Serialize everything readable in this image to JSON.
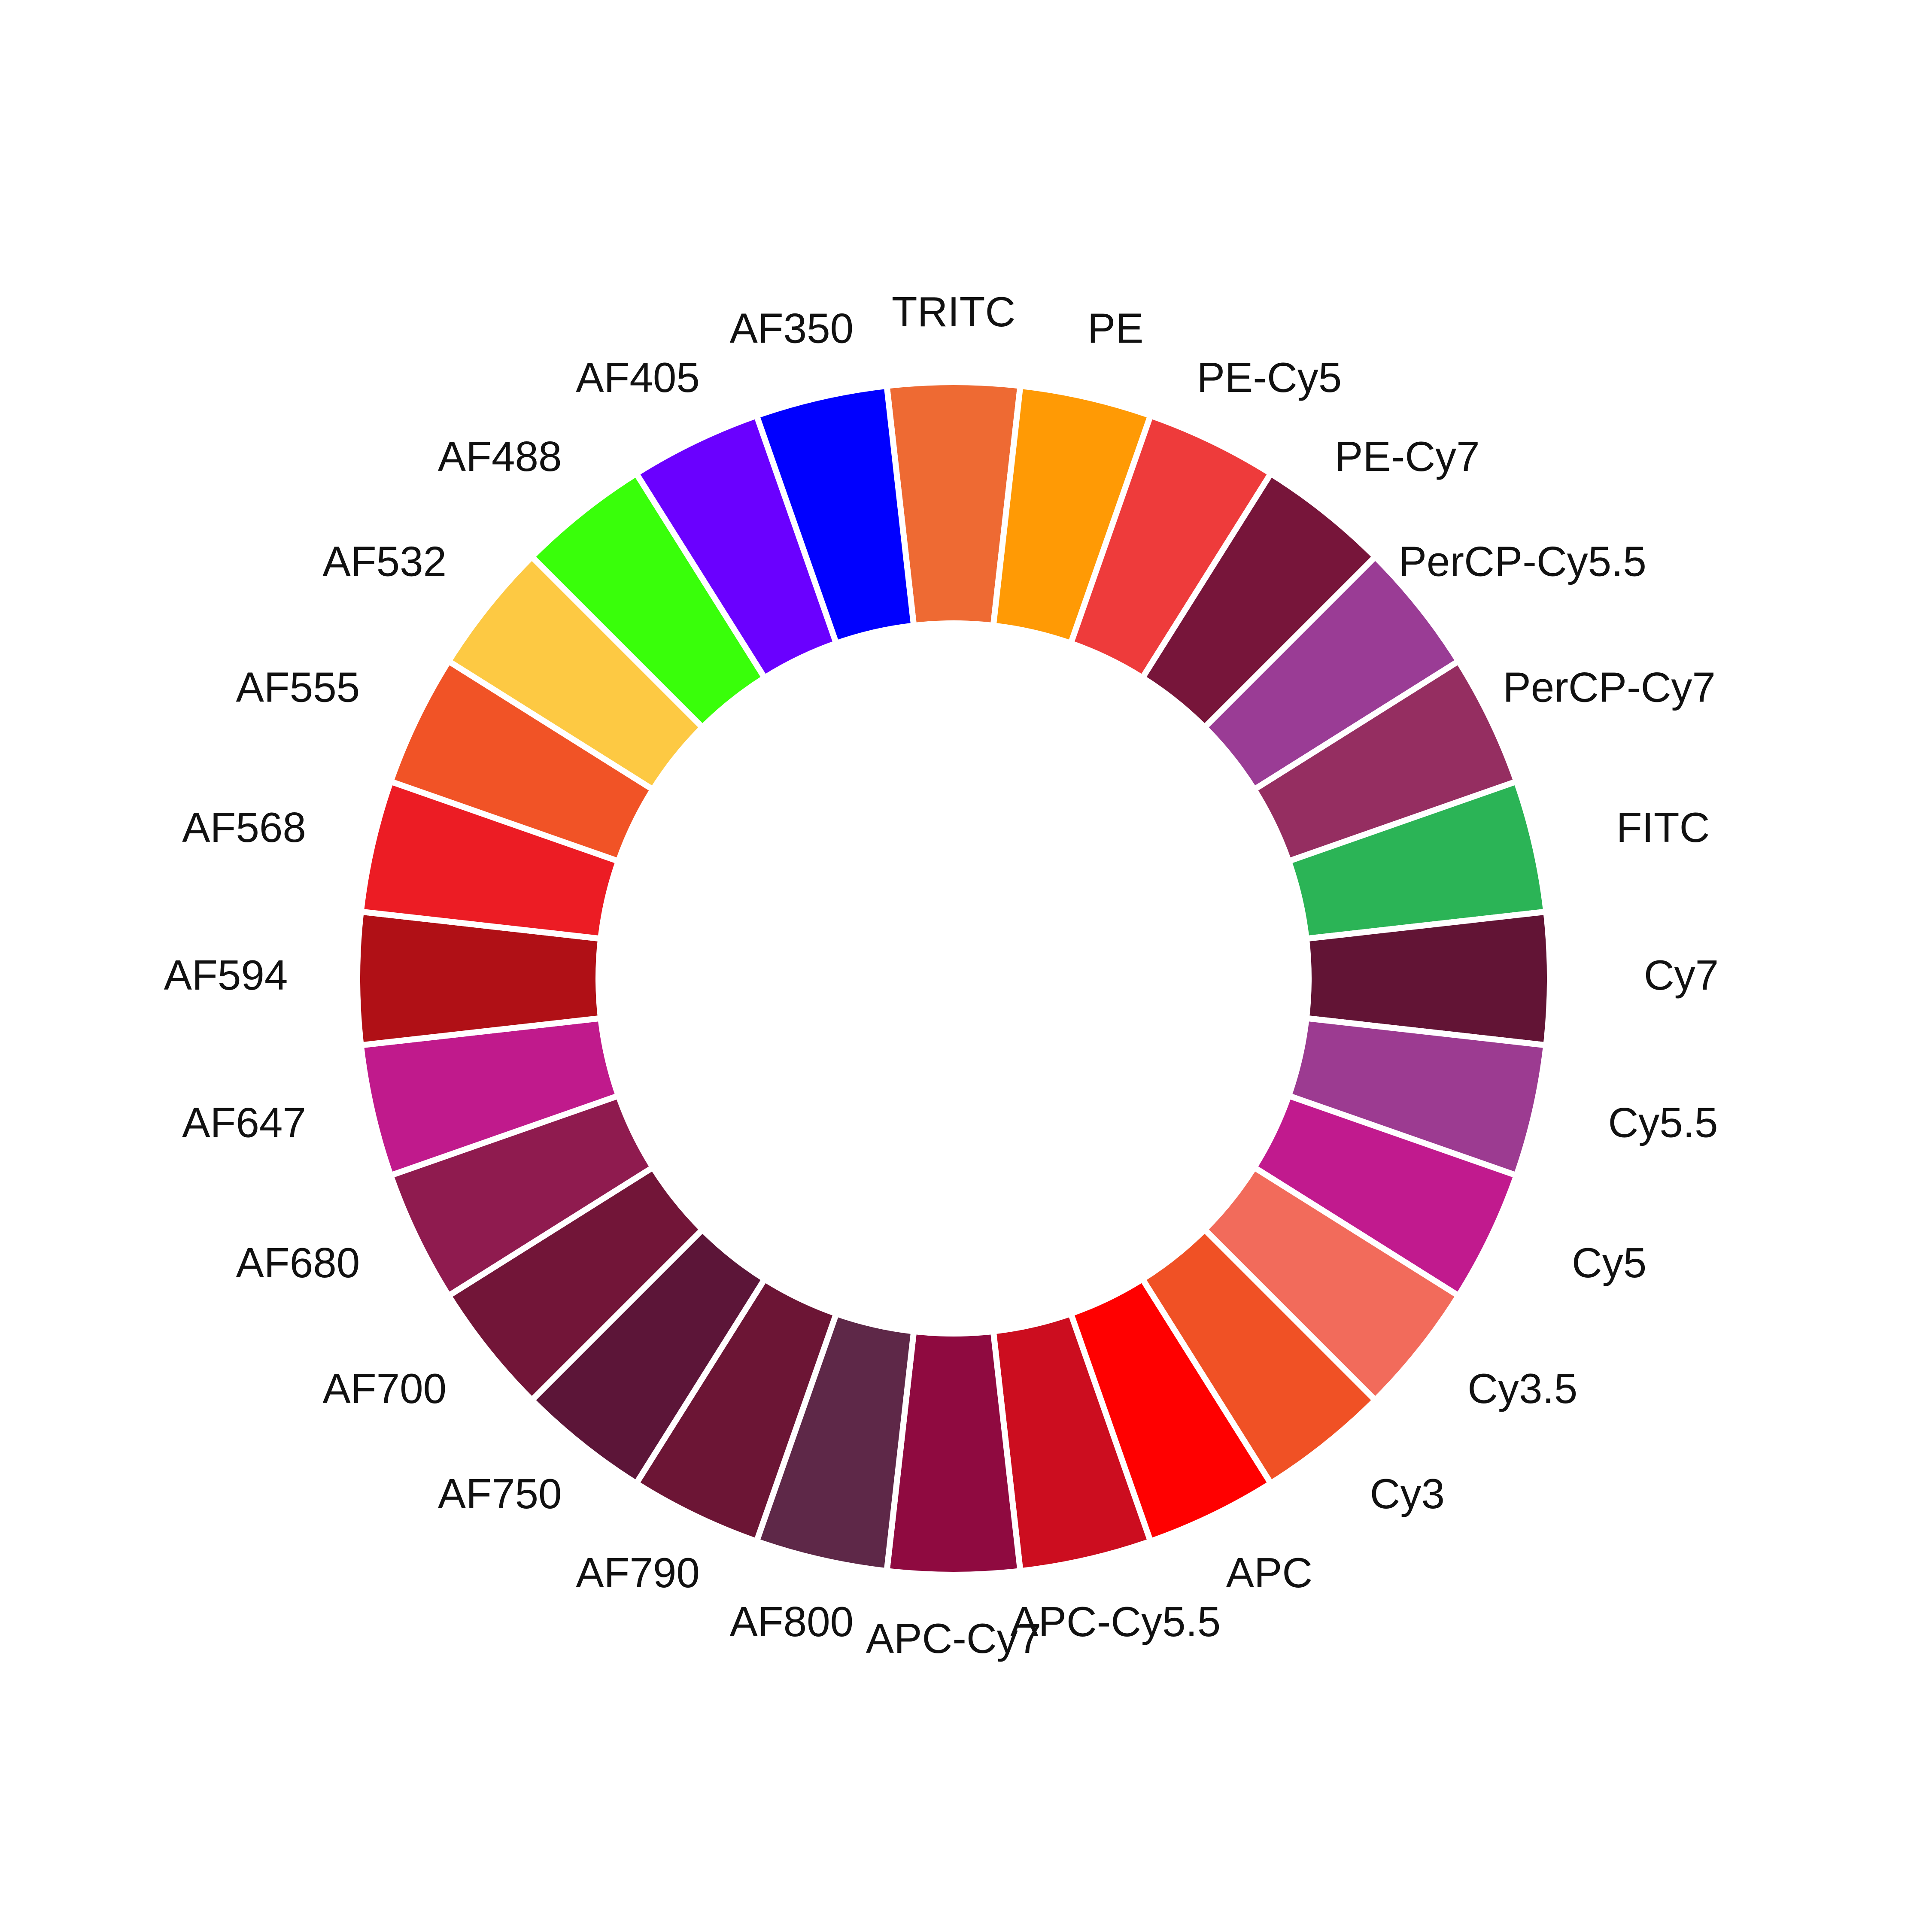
{
  "chart_data": {
    "type": "donut",
    "categories": [
      "TRITC",
      "PE",
      "PE-Cy5",
      "PE-Cy7",
      "PerCP-Cy5.5",
      "PerCP-Cy7",
      "FITC",
      "Cy7",
      "Cy5.5",
      "Cy5",
      "Cy3.5",
      "Cy3",
      "APC",
      "APC-Cy5.5",
      "APC-Cy7",
      "AF800",
      "AF790",
      "AF750",
      "AF700",
      "AF680",
      "AF647",
      "AF594",
      "AF568",
      "AF555",
      "AF532",
      "AF488",
      "AF405",
      "AF350"
    ],
    "values": [
      1,
      1,
      1,
      1,
      1,
      1,
      1,
      1,
      1,
      1,
      1,
      1,
      1,
      1,
      1,
      1,
      1,
      1,
      1,
      1,
      1,
      1,
      1,
      1,
      1,
      1,
      1,
      1
    ],
    "colors": [
      "#ee6a33",
      "#ff9a05",
      "#ee3b3b",
      "#77153a",
      "#9a3c95",
      "#952e61",
      "#2bb456",
      "#621435",
      "#9c3b91",
      "#c11a8e",
      "#f26b5b",
      "#f05125",
      "#ff0000",
      "#cc0d1f",
      "#8f0a40",
      "#5e2848",
      "#6c1535",
      "#5c1538",
      "#721538",
      "#8f1b4f",
      "#c01a8c",
      "#b01016",
      "#ec1c24",
      "#f15326",
      "#fdc943",
      "#39ff0a",
      "#6a00ff",
      "#0000ff"
    ]
  }
}
